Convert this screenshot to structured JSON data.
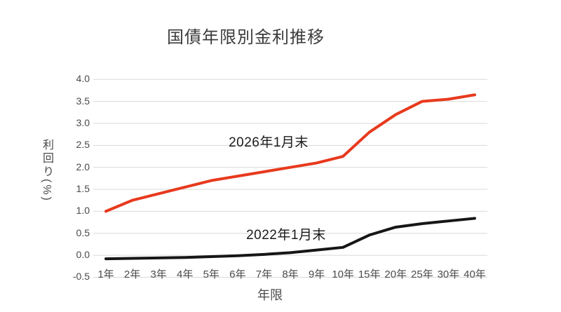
{
  "title": "国債年限別金利推移",
  "colors": {
    "background": "#ffffff",
    "gridline": "#d9d9d9",
    "title_text": "#3c3c3c",
    "tick_text": "#4a4a4a",
    "red_series": "#e8391d",
    "black_series": "#161616"
  },
  "y_axis": {
    "title": "利回り(%)",
    "ticks": [
      "4.0",
      "3.5",
      "3.0",
      "2.5",
      "2.0",
      "1.5",
      "1.0",
      "0.5",
      "0.0",
      "-0.5"
    ]
  },
  "x_axis": {
    "title": "年限",
    "ticks": [
      "1年",
      "2年",
      "3年",
      "4年",
      "5年",
      "6年",
      "7年",
      "8年",
      "9年",
      "10年",
      "15年",
      "20年",
      "25年",
      "30年",
      "40年"
    ]
  },
  "chart_data": {
    "type": "line",
    "title": "国債年限別金利推移",
    "xlabel": "年限",
    "ylabel": "利回り(%)",
    "categories": [
      "1年",
      "2年",
      "3年",
      "4年",
      "5年",
      "6年",
      "7年",
      "8年",
      "9年",
      "10年",
      "15年",
      "20年",
      "25年",
      "30年",
      "40年"
    ],
    "series": [
      {
        "name": "2026年1月末",
        "color": "#e8391d",
        "values": [
          1.0,
          1.25,
          1.4,
          1.55,
          1.7,
          1.8,
          1.9,
          2.0,
          2.1,
          2.25,
          2.8,
          3.2,
          3.5,
          3.55,
          3.65
        ]
      },
      {
        "name": "2022年1月末",
        "color": "#161616",
        "values": [
          -0.08,
          -0.07,
          -0.06,
          -0.05,
          -0.03,
          -0.01,
          0.02,
          0.06,
          0.12,
          0.18,
          0.46,
          0.64,
          0.72,
          0.78,
          0.84
        ]
      }
    ],
    "ylim": [
      -0.5,
      4.0
    ],
    "grid": true,
    "legend_position": "inline-labels"
  }
}
